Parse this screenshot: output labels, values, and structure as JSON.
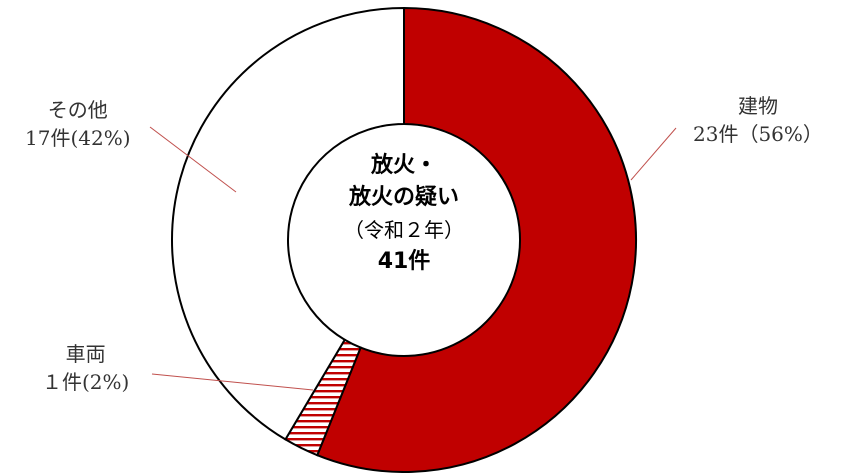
{
  "chart_data": {
    "type": "pie",
    "variant": "donut",
    "center_label": {
      "line1": "放火・",
      "line2": "放火の疑い",
      "line3": "（令和２年）",
      "line4": "41件"
    },
    "slices": [
      {
        "label": "建物",
        "value_text": "23件（56%）",
        "count": 23,
        "percent": 56,
        "color": "#c00000",
        "pattern": "solid"
      },
      {
        "label": "車両",
        "value_text": "１件(2%)",
        "count": 1,
        "percent": 2,
        "color": "#c00000",
        "pattern": "horizontal-stripes"
      },
      {
        "label": "その他",
        "value_text": "17件(42%)",
        "count": 17,
        "percent": 42,
        "color": "#ffffff",
        "pattern": "none"
      }
    ],
    "total": 41
  }
}
